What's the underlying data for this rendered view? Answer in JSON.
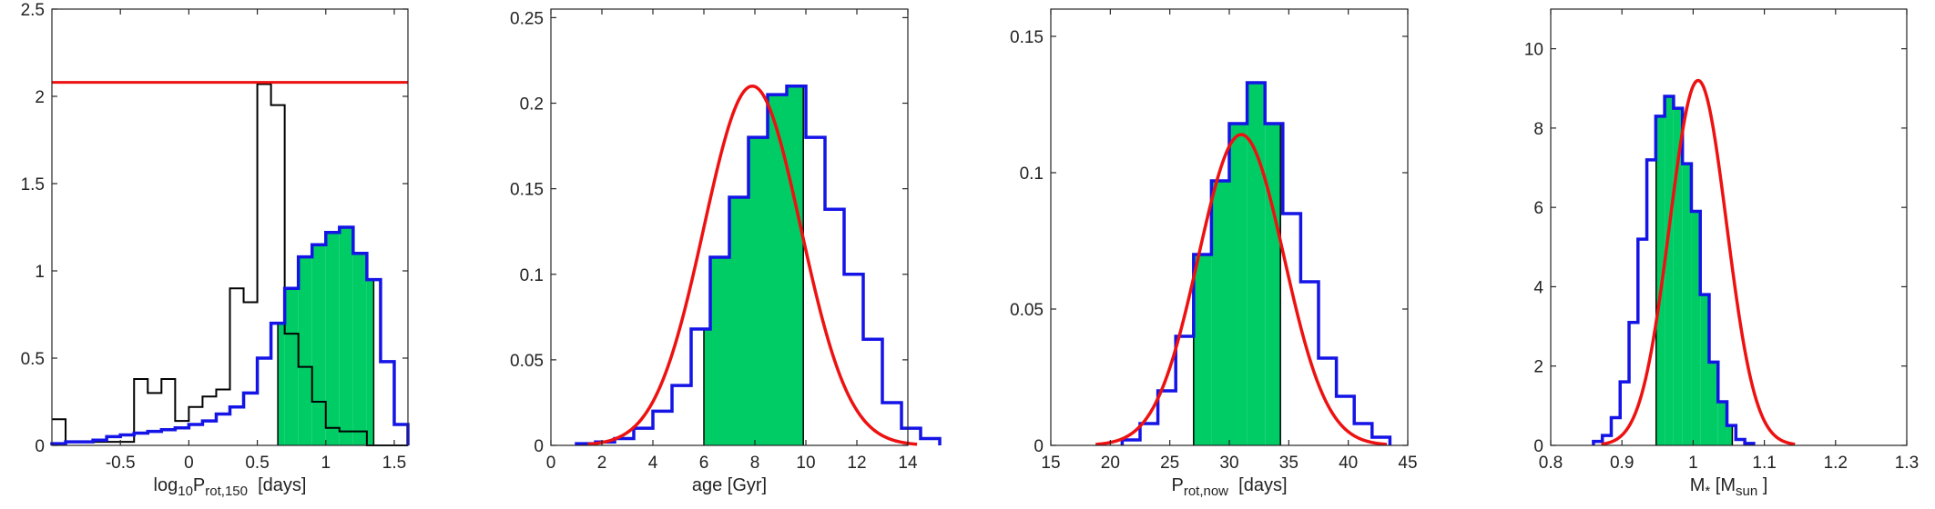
{
  "colors": {
    "fill": "#00cc66",
    "hist": "#1414e6",
    "fit": "#ee1111",
    "black": "#000000"
  },
  "chart_data": [
    {
      "type": "histogram",
      "xlabel_parts": [
        {
          "t": "log"
        },
        {
          "t": "10",
          "sub": true
        },
        {
          "t": "P"
        },
        {
          "t": "rot,150",
          "sub": true
        },
        {
          "t": "  [days]"
        }
      ],
      "xlim": [
        -1,
        1.6
      ],
      "ylim": [
        0,
        2.5
      ],
      "xticks": [
        -0.5,
        0,
        0.5,
        1,
        1.5
      ],
      "xticklabels": [
        "-0.5",
        "0",
        "0.5",
        "1",
        "1.5"
      ],
      "yticks": [
        0,
        0.5,
        1,
        1.5,
        2,
        2.5
      ],
      "yticklabels": [
        "0",
        "0.5",
        "1",
        "1.5",
        "2",
        "2.5"
      ],
      "hist_start": -1,
      "hist_width": 0.1,
      "hist_values": [
        0.01,
        0.02,
        0.02,
        0.03,
        0.05,
        0.06,
        0.07,
        0.08,
        0.09,
        0.1,
        0.12,
        0.14,
        0.18,
        0.22,
        0.3,
        0.5,
        0.7,
        0.9,
        1.08,
        1.15,
        1.22,
        1.25,
        1.1,
        0.95,
        0.48,
        0.12
      ],
      "fill_range": [
        0.65,
        1.35
      ],
      "black_start": -1,
      "black_width": 0.1,
      "black_values": [
        0.15,
        0.02,
        0.02,
        0.02,
        0.02,
        0.02,
        0.38,
        0.3,
        0.38,
        0.14,
        0.22,
        0.28,
        0.32,
        0.9,
        0.82,
        2.07,
        1.95,
        0.64,
        0.45,
        0.25,
        0.1,
        0.08,
        0.08,
        0.0,
        0.0,
        0.0
      ],
      "hline": 2.08
    },
    {
      "type": "histogram",
      "xlabel_parts": [
        {
          "t": "age [Gyr]"
        }
      ],
      "xlim": [
        0,
        14
      ],
      "ylim": [
        0,
        0.255
      ],
      "xticks": [
        0,
        2,
        4,
        6,
        8,
        10,
        12,
        14
      ],
      "xticklabels": [
        "0",
        "2",
        "4",
        "6",
        "8",
        "10",
        "12",
        "14"
      ],
      "yticks": [
        0,
        0.05,
        0.1,
        0.15,
        0.2,
        0.25
      ],
      "yticklabels": [
        "0",
        "0.05",
        "0.1",
        "0.15",
        "0.2",
        "0.25"
      ],
      "hist_start": 1,
      "hist_width": 0.75,
      "hist_values": [
        0.001,
        0.002,
        0.004,
        0.01,
        0.02,
        0.035,
        0.068,
        0.11,
        0.145,
        0.18,
        0.205,
        0.21,
        0.18,
        0.138,
        0.1,
        0.062,
        0.025,
        0.01,
        0.004
      ],
      "fill_range": [
        6,
        9.9
      ],
      "fit": {
        "mu": 7.9,
        "sigma": 1.9,
        "amp": 0.21
      }
    },
    {
      "type": "histogram",
      "xlabel_parts": [
        {
          "t": "P"
        },
        {
          "t": "rot,now",
          "sub": true
        },
        {
          "t": "  [days]"
        }
      ],
      "xlim": [
        15,
        45
      ],
      "ylim": [
        0,
        0.16
      ],
      "xticks": [
        15,
        20,
        25,
        30,
        35,
        40,
        45
      ],
      "xticklabels": [
        "15",
        "20",
        "25",
        "30",
        "35",
        "40",
        "45"
      ],
      "yticks": [
        0,
        0.05,
        0.1,
        0.15
      ],
      "yticklabels": [
        "0",
        "0.05",
        "0.1",
        "0.15"
      ],
      "hist_start": 21,
      "hist_width": 1.5,
      "hist_values": [
        0.002,
        0.008,
        0.02,
        0.04,
        0.07,
        0.097,
        0.118,
        0.133,
        0.118,
        0.085,
        0.06,
        0.032,
        0.018,
        0.008,
        0.003
      ],
      "fill_range": [
        27,
        34.3
      ],
      "fit": {
        "mu": 31,
        "sigma": 3.6,
        "amp": 0.114
      }
    },
    {
      "type": "histogram",
      "xlabel_parts": [
        {
          "t": "M"
        },
        {
          "t": "*",
          "sub": true
        },
        {
          "t": " [M"
        },
        {
          "t": "sun",
          "sub": true
        },
        {
          "t": " ]"
        }
      ],
      "xlim": [
        0.8,
        1.3
      ],
      "ylim": [
        0,
        11
      ],
      "xticks": [
        0.8,
        0.9,
        1,
        1.1,
        1.2,
        1.3
      ],
      "xticklabels": [
        "0.8",
        "0.9",
        "1",
        "1.1",
        "1.2",
        "1.3"
      ],
      "yticks": [
        0,
        2,
        4,
        6,
        8,
        10
      ],
      "yticklabels": [
        "0",
        "2",
        "4",
        "6",
        "8",
        "10"
      ],
      "hist_start": 0.86,
      "hist_width": 0.0125,
      "hist_values": [
        0.1,
        0.25,
        0.7,
        1.6,
        3.1,
        5.2,
        7.2,
        8.3,
        8.8,
        8.5,
        7.1,
        5.9,
        3.8,
        2.1,
        1.1,
        0.5,
        0.15,
        0.05
      ],
      "fill_range": [
        0.948,
        1.055
      ],
      "fit": {
        "mu": 1.007,
        "sigma": 0.04,
        "amp": 9.2
      }
    }
  ]
}
